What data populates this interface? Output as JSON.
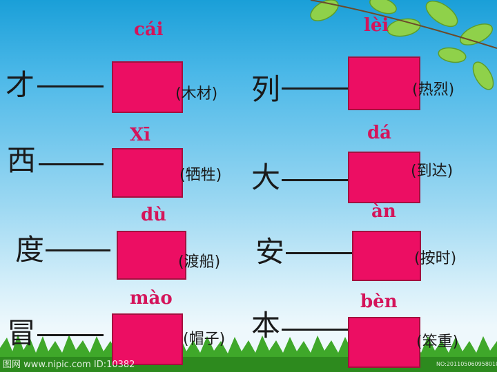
{
  "items": [
    {
      "char": "才",
      "pinyin": "cái",
      "word": "(木材)"
    },
    {
      "char": "西",
      "pinyin": "Xī",
      "word": "(牺牲)"
    },
    {
      "char": "度",
      "pinyin": "dù",
      "word": "(渡船)"
    },
    {
      "char": "冒",
      "pinyin": "mào",
      "word": "(帽子)"
    },
    {
      "char": "列",
      "pinyin": "lèi",
      "word": "(热烈)"
    },
    {
      "char": "大",
      "pinyin": "dá",
      "word": "(到达)"
    },
    {
      "char": "安",
      "pinyin": "àn",
      "word": "(按时)"
    },
    {
      "char": "本",
      "pinyin": "bèn",
      "word": "(笨重)"
    }
  ],
  "watermark": {
    "left": "图网 www.nipic.com  ID:10382",
    "right": "NO:20110506095801085"
  },
  "colors": {
    "box": "#ec0e63",
    "pinyin": "#d4145a",
    "sky": "#4bb8e8",
    "grass": "#3fa82a"
  }
}
